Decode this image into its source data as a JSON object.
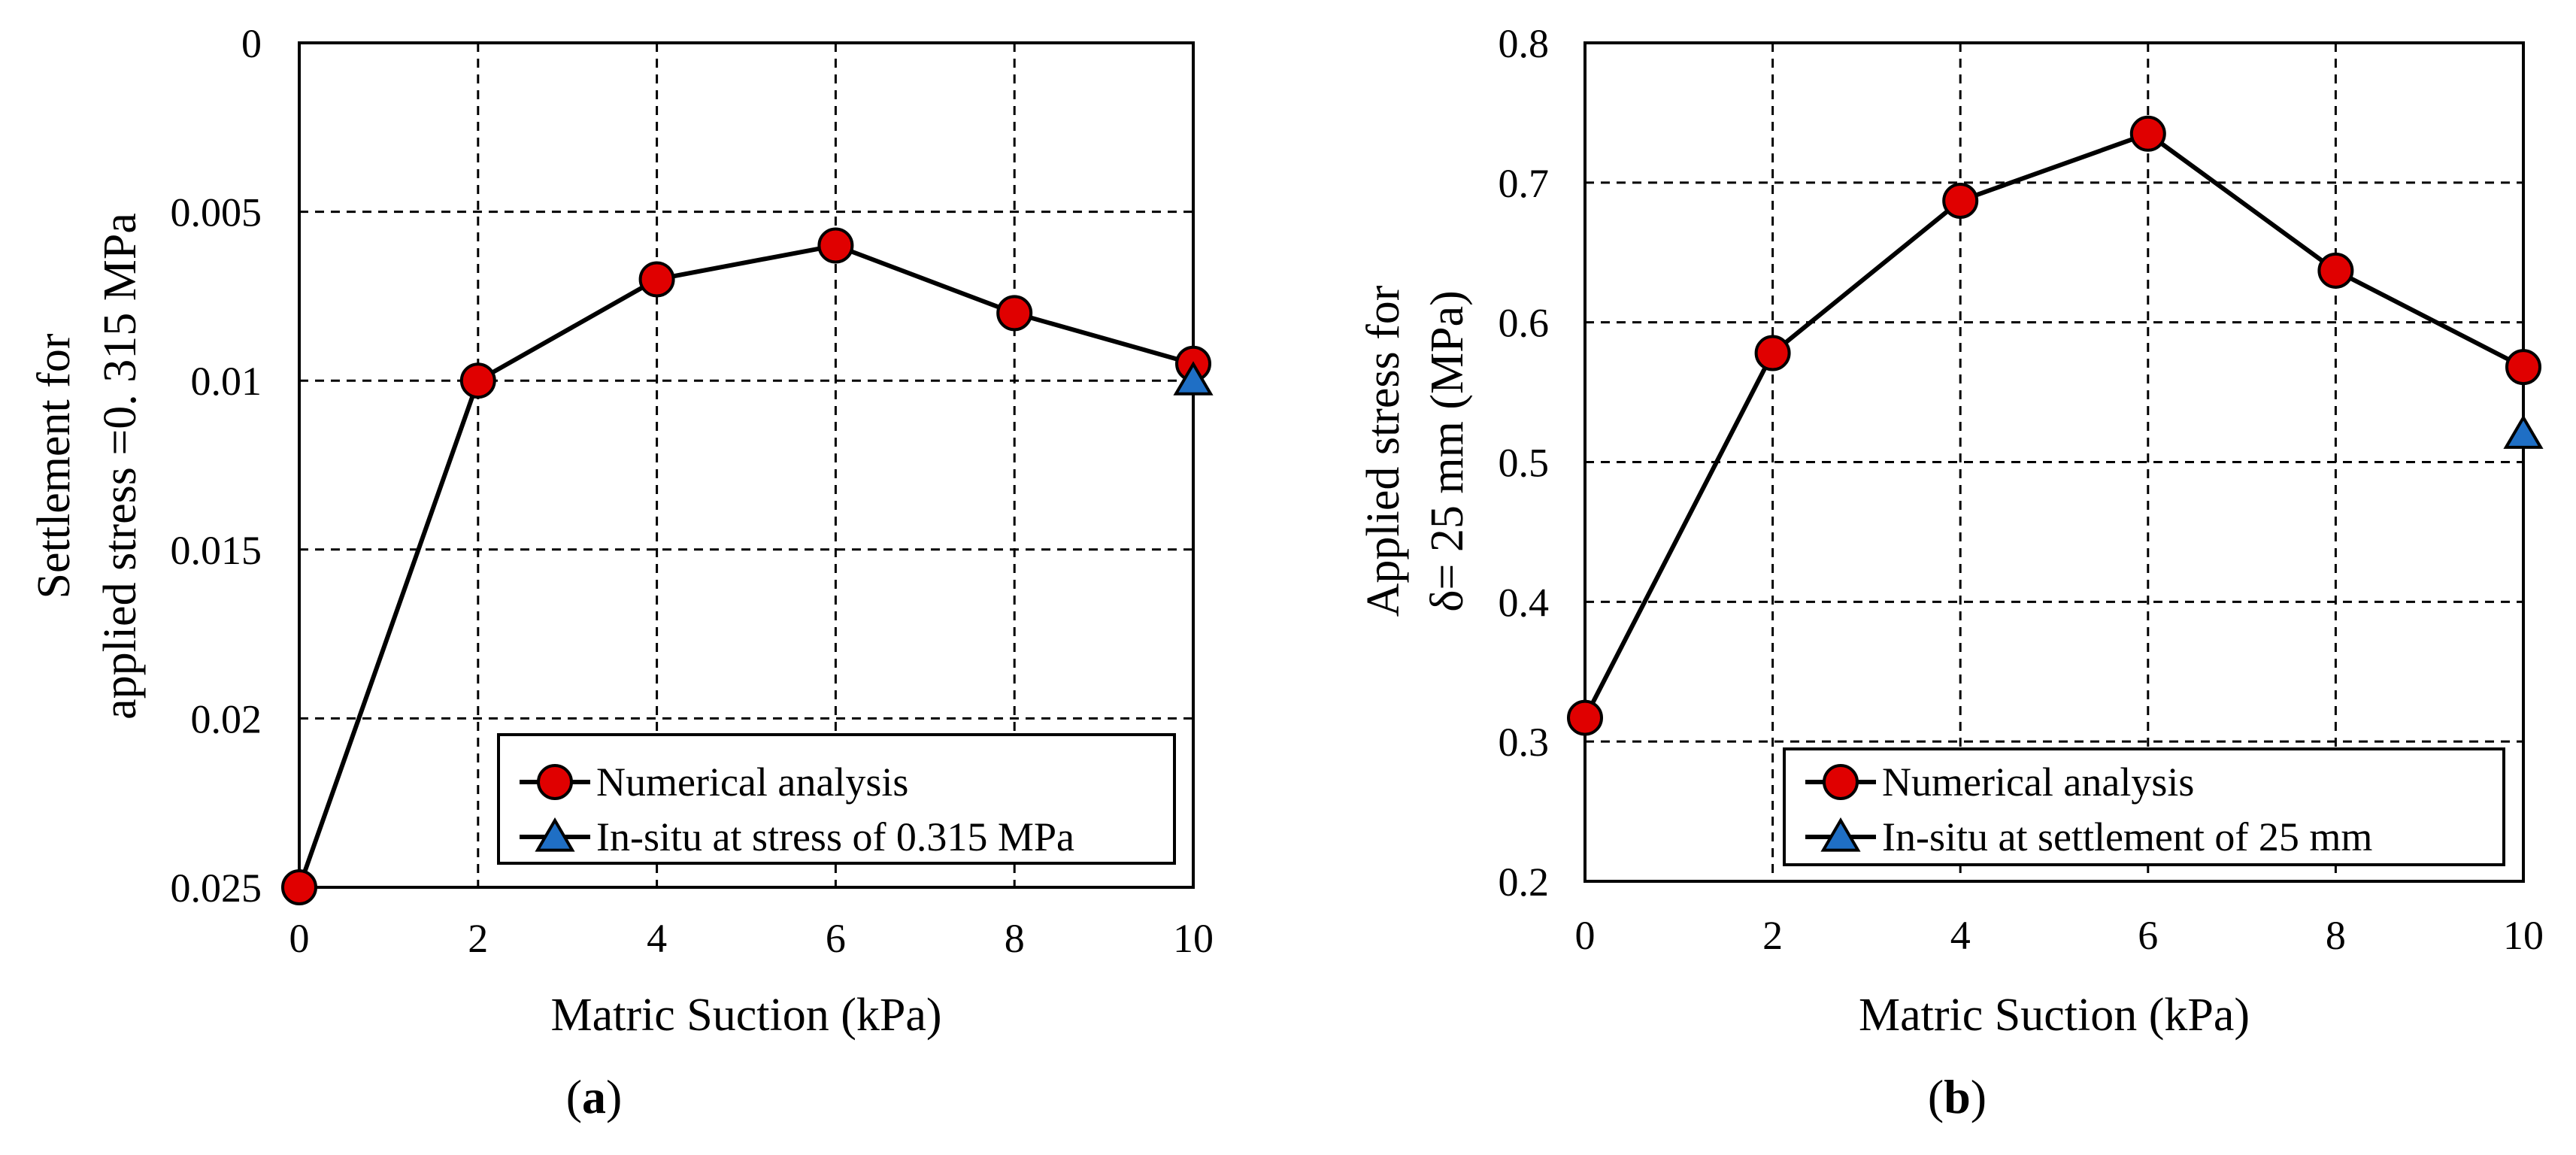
{
  "chart_data": [
    {
      "type": "line",
      "panel_label": "(a)",
      "panel_label_parts": [
        "(",
        "a",
        ")"
      ],
      "xlabel": "Matric Suction (kPa)",
      "ylabel_lines": [
        "Settlement  for",
        "applied stress =0. 315 MPa"
      ],
      "x_ticks": [
        0,
        2,
        4,
        6,
        8,
        10
      ],
      "x_tick_labels": [
        "0",
        "2",
        "4",
        "6",
        "8",
        "10"
      ],
      "y_ticks": [
        0,
        0.005,
        0.01,
        0.015,
        0.02,
        0.025
      ],
      "y_tick_labels": [
        "0",
        "0.005",
        "0.01",
        "0.015",
        "0.02",
        "0.025"
      ],
      "xlim": [
        0,
        10
      ],
      "ylim": [
        0,
        0.025
      ],
      "y_inverted": true,
      "grid": true,
      "legend_position": "bottom-right",
      "series": [
        {
          "name": "Numerical analysis",
          "marker": "circle",
          "color": "#e00000",
          "x": [
            0,
            2,
            4,
            6,
            8,
            10
          ],
          "y": [
            0.025,
            0.01,
            0.007,
            0.006,
            0.008,
            0.0095
          ]
        },
        {
          "name": "In-situ at stress of 0.315 MPa",
          "marker": "triangle",
          "color": "#1f6fc5",
          "x": [
            10
          ],
          "y": [
            0.01
          ]
        }
      ]
    },
    {
      "type": "line",
      "panel_label": "(b)",
      "panel_label_parts": [
        "(",
        "b",
        ")"
      ],
      "xlabel": "Matric Suction (kPa)",
      "ylabel_lines": [
        "Applied  stress for",
        "δ=  25 mm (MPa)"
      ],
      "x_ticks": [
        0,
        2,
        4,
        6,
        8,
        10
      ],
      "x_tick_labels": [
        "0",
        "2",
        "4",
        "6",
        "8",
        "10"
      ],
      "y_ticks": [
        0.2,
        0.3,
        0.4,
        0.5,
        0.6,
        0.7,
        0.8
      ],
      "y_tick_labels": [
        "0.2",
        "0.3",
        "0.4",
        "0.5",
        "0.6",
        "0.7",
        "0.8"
      ],
      "xlim": [
        0,
        10
      ],
      "ylim": [
        0.2,
        0.8
      ],
      "y_inverted": false,
      "grid": true,
      "legend_position": "bottom-right",
      "series": [
        {
          "name": "Numerical analysis",
          "marker": "circle",
          "color": "#e00000",
          "x": [
            0,
            2,
            4,
            6,
            8,
            10
          ],
          "y": [
            0.317,
            0.578,
            0.687,
            0.735,
            0.637,
            0.568
          ]
        },
        {
          "name": "In-situ at settlement of 25 mm",
          "marker": "triangle",
          "color": "#1f6fc5",
          "x": [
            10
          ],
          "y": [
            0.52
          ]
        }
      ]
    }
  ]
}
